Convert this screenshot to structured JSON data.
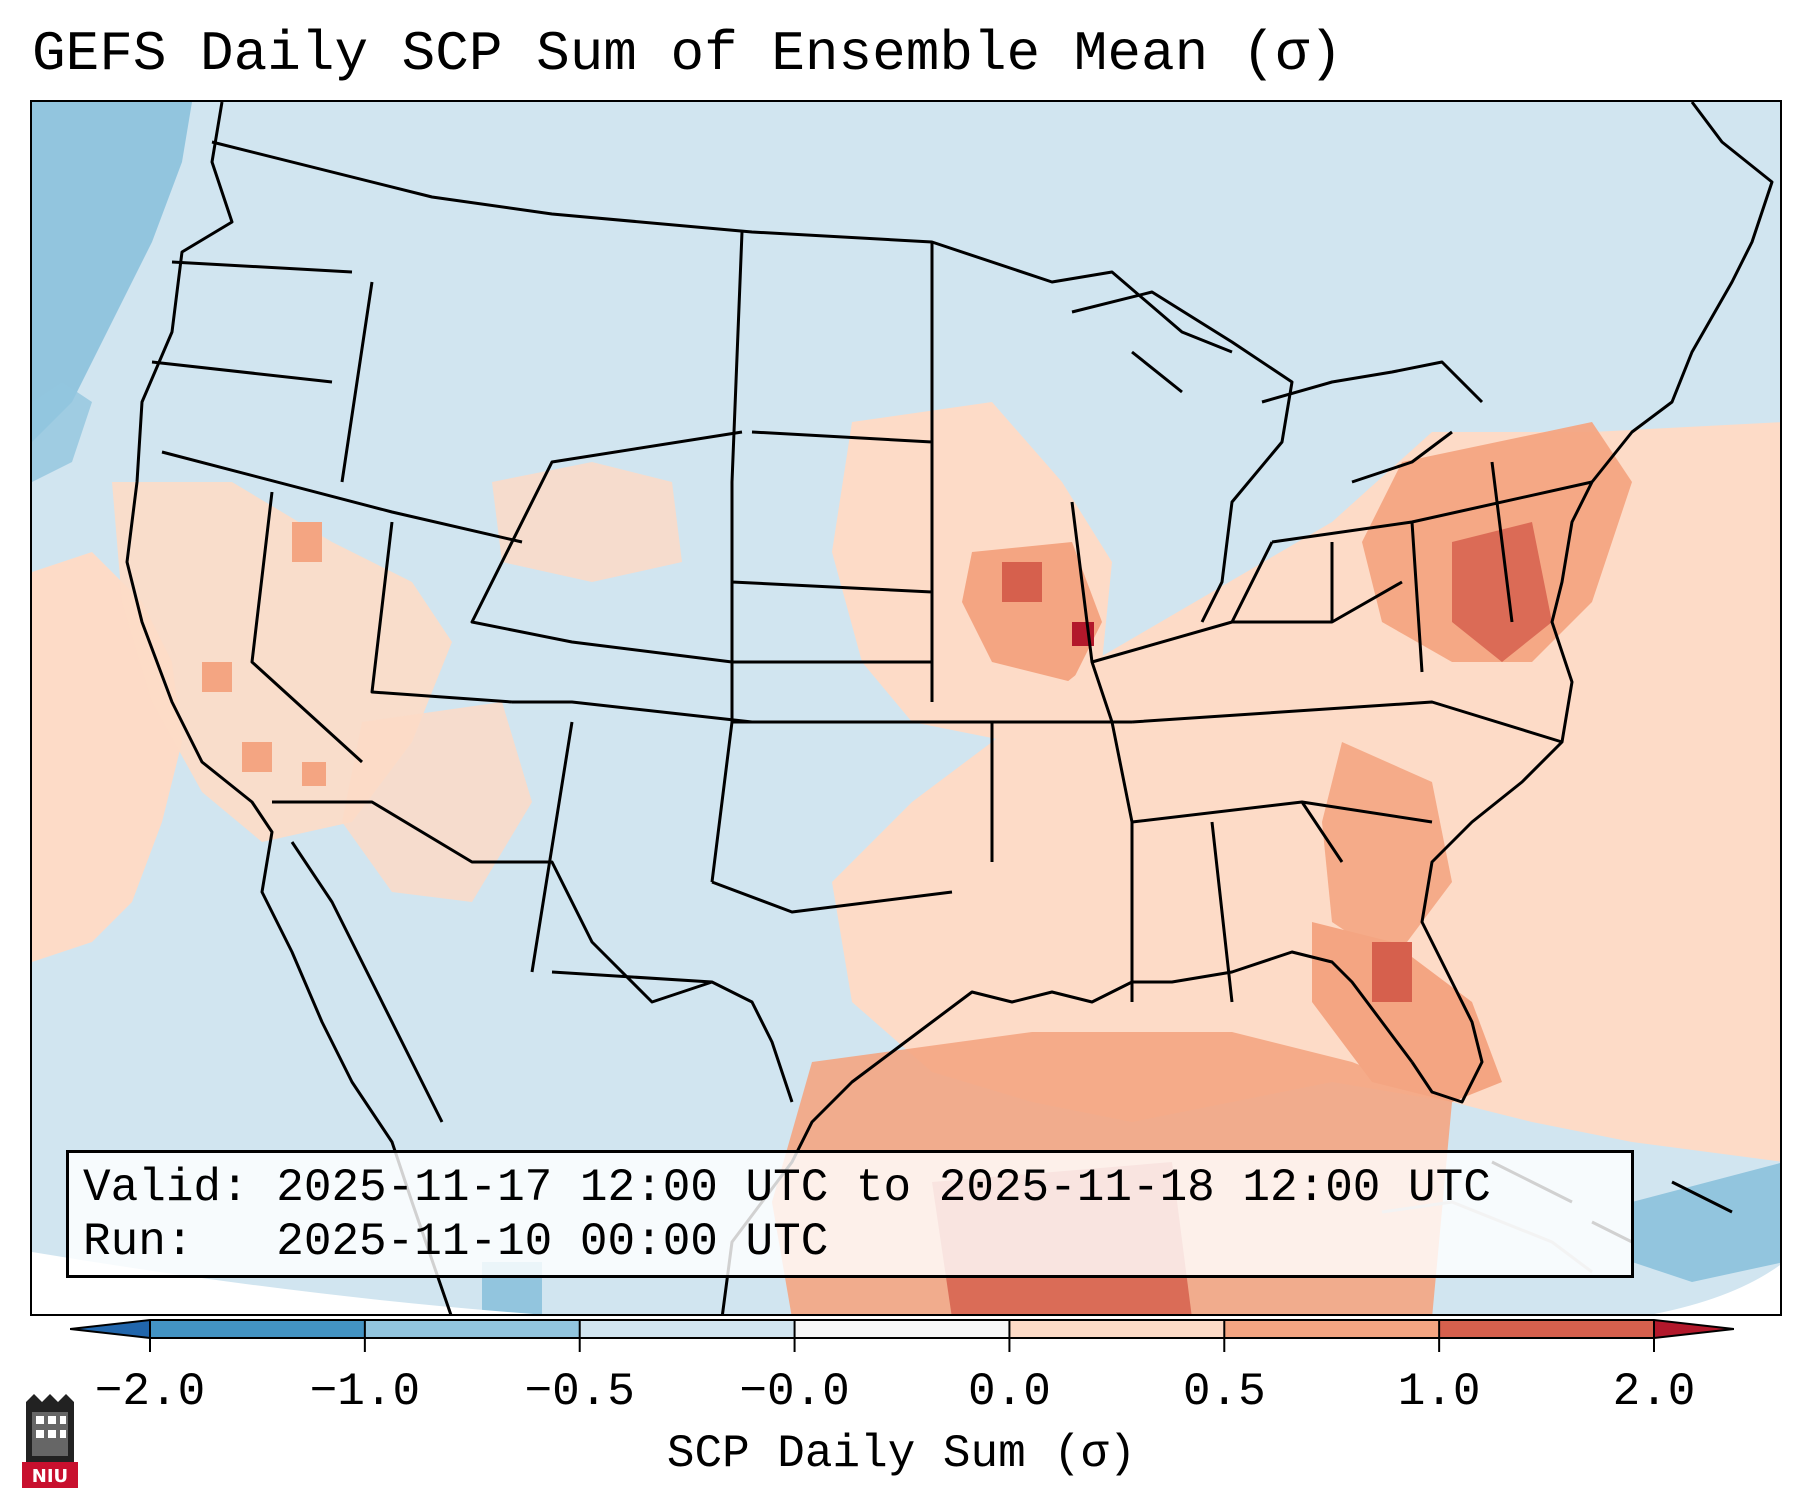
{
  "title": "GEFS Daily SCP Sum of Ensemble Mean (σ)",
  "info": {
    "valid_line": "Valid: 2025-11-17 12:00 UTC to 2025-11-18 12:00 UTC",
    "run_line": "Run:   2025-11-10 00:00 UTC"
  },
  "colorbar": {
    "label": "SCP Daily Sum (σ)",
    "ticks": [
      "−2.0",
      "−1.0",
      "−0.5",
      "−0.0",
      "0.0",
      "0.5",
      "1.0",
      "2.0"
    ],
    "bins": [
      {
        "color": "#2166ac"
      },
      {
        "color": "#4393c3"
      },
      {
        "color": "#92c5de"
      },
      {
        "color": "#d1e5f0"
      },
      {
        "color": "#f7f7f7"
      },
      {
        "color": "#fddbc7"
      },
      {
        "color": "#f4a582"
      },
      {
        "color": "#d6604d"
      },
      {
        "color": "#b2182b"
      }
    ],
    "extend": "both"
  },
  "map": {
    "region": "CONUS",
    "background_color": "#d1e5f0"
  },
  "logo_text": "NIU"
}
